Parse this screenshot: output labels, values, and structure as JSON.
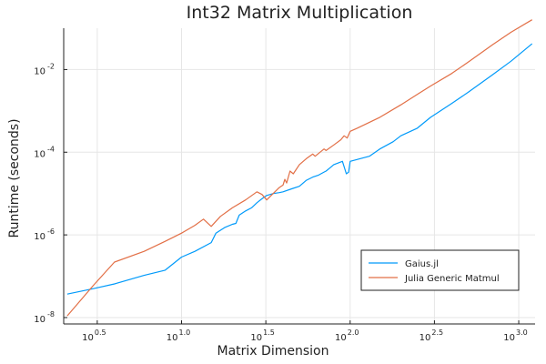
{
  "chart_data": {
    "type": "line",
    "title": "Int32 Matrix Multiplication",
    "xlabel": "Matrix Dimension",
    "ylabel": "Runtime (seconds)",
    "x_scale": "log10",
    "y_scale": "log10",
    "xlim": [
      2,
      1250
    ],
    "ylim": [
      7e-09,
      0.1
    ],
    "grid": true,
    "legend_position": "bottom-right",
    "x_ticks": [
      {
        "value": 3.1623,
        "base": "10",
        "exp": "0.5"
      },
      {
        "value": 10,
        "base": "10",
        "exp": "1.0"
      },
      {
        "value": 31.623,
        "base": "10",
        "exp": "1.5"
      },
      {
        "value": 100,
        "base": "10",
        "exp": "2.0"
      },
      {
        "value": 316.23,
        "base": "10",
        "exp": "2.5"
      },
      {
        "value": 1000,
        "base": "10",
        "exp": "3.0"
      }
    ],
    "y_ticks": [
      {
        "value": 1e-08,
        "base": "10",
        "exp": "-8"
      },
      {
        "value": 1e-06,
        "base": "10",
        "exp": "-6"
      },
      {
        "value": 0.0001,
        "base": "10",
        "exp": "-4"
      },
      {
        "value": 0.01,
        "base": "10",
        "exp": "-2"
      }
    ],
    "series": [
      {
        "name": "Gaius.jl",
        "color": "#009AFA",
        "points": [
          [
            2.1,
            3.7e-08
          ],
          [
            3.0,
            5e-08
          ],
          [
            4.0,
            6.5e-08
          ],
          [
            6.0,
            1.05e-07
          ],
          [
            8.0,
            1.4e-07
          ],
          [
            10.0,
            2.9e-07
          ],
          [
            12.0,
            4e-07
          ],
          [
            15.0,
            6.5e-07
          ],
          [
            16.0,
            1.1e-06
          ],
          [
            18.0,
            1.5e-06
          ],
          [
            20.0,
            1.8e-06
          ],
          [
            21.0,
            1.9e-06
          ],
          [
            22.0,
            3e-06
          ],
          [
            24.0,
            3.8e-06
          ],
          [
            26.0,
            4.5e-06
          ],
          [
            28.0,
            6e-06
          ],
          [
            30.0,
            7.5e-06
          ],
          [
            32.0,
            9e-06
          ],
          [
            35.0,
            1e-05
          ],
          [
            38.0,
            1.05e-05
          ],
          [
            40.0,
            1.1e-05
          ],
          [
            45.0,
            1.3e-05
          ],
          [
            50.0,
            1.5e-05
          ],
          [
            55.0,
            2.1e-05
          ],
          [
            60.0,
            2.5e-05
          ],
          [
            65.0,
            2.8e-05
          ],
          [
            70.0,
            3.3e-05
          ],
          [
            72.0,
            3.5e-05
          ],
          [
            75.0,
            4e-05
          ],
          [
            80.0,
            5e-05
          ],
          [
            90.0,
            6e-05
          ],
          [
            95.0,
            3e-05
          ],
          [
            98.0,
            3.3e-05
          ],
          [
            100.0,
            6e-05
          ],
          [
            115.0,
            7e-05
          ],
          [
            130.0,
            8e-05
          ],
          [
            150.0,
            0.00012
          ],
          [
            180.0,
            0.00018
          ],
          [
            200.0,
            0.00025
          ],
          [
            250.0,
            0.00038
          ],
          [
            300.0,
            0.0007
          ],
          [
            400.0,
            0.0015
          ],
          [
            500.0,
            0.0028
          ],
          [
            700.0,
            0.0075
          ],
          [
            900.0,
            0.016
          ],
          [
            1200.0,
            0.042
          ]
        ]
      },
      {
        "name": "Julia Generic Matmul",
        "color": "#E26F46",
        "points": [
          [
            2.1,
            1.1e-08
          ],
          [
            3.0,
            6e-08
          ],
          [
            4.0,
            2.2e-07
          ],
          [
            6.0,
            4e-07
          ],
          [
            8.0,
            7e-07
          ],
          [
            10.0,
            1.1e-06
          ],
          [
            12.0,
            1.7e-06
          ],
          [
            13.5,
            2.4e-06
          ],
          [
            15.0,
            1.6e-06
          ],
          [
            17.0,
            2.8e-06
          ],
          [
            20.0,
            4.5e-06
          ],
          [
            24.0,
            7e-06
          ],
          [
            28.0,
            1.1e-05
          ],
          [
            30.0,
            9.5e-06
          ],
          [
            32.0,
            7e-06
          ],
          [
            34.0,
            9e-06
          ],
          [
            38.0,
            1.4e-05
          ],
          [
            40.0,
            1.6e-05
          ],
          [
            41.0,
            2.2e-05
          ],
          [
            42.0,
            1.8e-05
          ],
          [
            44.0,
            3.5e-05
          ],
          [
            46.0,
            3e-05
          ],
          [
            50.0,
            5e-05
          ],
          [
            55.0,
            7e-05
          ],
          [
            60.0,
            9e-05
          ],
          [
            62.0,
            8e-05
          ],
          [
            70.0,
            0.00012
          ],
          [
            72.0,
            0.00011
          ],
          [
            80.0,
            0.00015
          ],
          [
            88.0,
            0.0002
          ],
          [
            92.0,
            0.00025
          ],
          [
            96.0,
            0.00022
          ],
          [
            100.0,
            0.00032
          ],
          [
            110.0,
            0.00038
          ],
          [
            150.0,
            0.0007
          ],
          [
            200.0,
            0.0014
          ],
          [
            250.0,
            0.0025
          ],
          [
            300.0,
            0.004
          ],
          [
            400.0,
            0.008
          ],
          [
            500.0,
            0.015
          ],
          [
            700.0,
            0.04
          ],
          [
            900.0,
            0.08
          ],
          [
            1200.0,
            0.16
          ]
        ]
      }
    ]
  }
}
